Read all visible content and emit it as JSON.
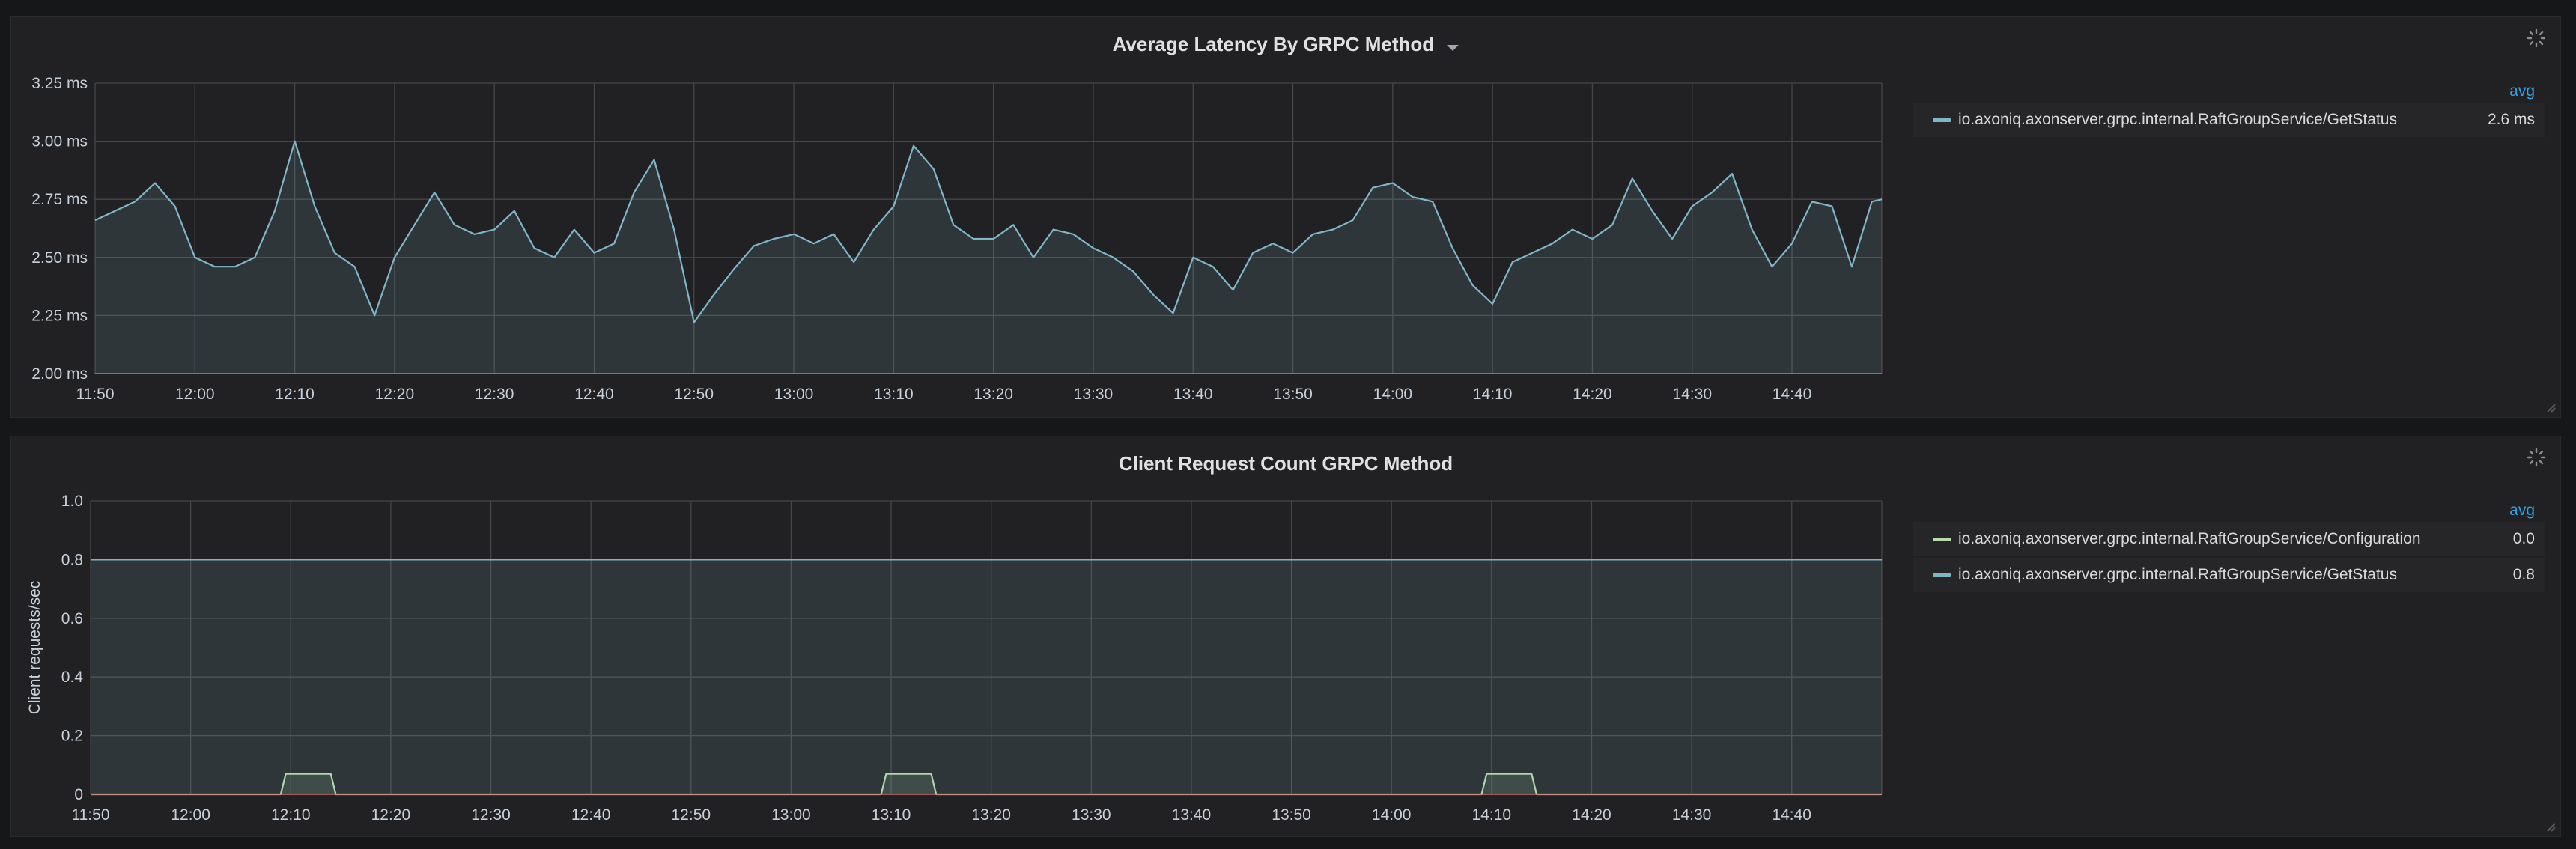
{
  "panels": [
    {
      "title": "Average Latency By GRPC Method",
      "legend_header": "avg",
      "legend": [
        {
          "name": "io.axoniq.axonserver.grpc.internal.RaftGroupService/GetStatus",
          "value": "2.6 ms",
          "color": "#7eb6c8"
        }
      ],
      "y_ticks": [
        "2.00 ms",
        "2.25 ms",
        "2.50 ms",
        "2.75 ms",
        "3.00 ms",
        "3.25 ms"
      ],
      "x_ticks": [
        "11:50",
        "12:00",
        "12:10",
        "12:20",
        "12:30",
        "12:40",
        "12:50",
        "13:00",
        "13:10",
        "13:20",
        "13:30",
        "13:40",
        "13:50",
        "14:00",
        "14:10",
        "14:20",
        "14:30",
        "14:40"
      ]
    },
    {
      "title": "Client Request Count GRPC Method",
      "legend_header": "avg",
      "ylabel": "Client requests/sec",
      "legend": [
        {
          "name": "io.axoniq.axonserver.grpc.internal.RaftGroupService/Configuration",
          "value": "0.0",
          "color": "#b7dbab"
        },
        {
          "name": "io.axoniq.axonserver.grpc.internal.RaftGroupService/GetStatus",
          "value": "0.8",
          "color": "#7eb6c8"
        }
      ],
      "y_ticks": [
        "0",
        "0.2",
        "0.4",
        "0.6",
        "0.8",
        "1.0"
      ],
      "x_ticks": [
        "11:50",
        "12:00",
        "12:10",
        "12:20",
        "12:30",
        "12:40",
        "12:50",
        "13:00",
        "13:10",
        "13:20",
        "13:30",
        "13:40",
        "13:50",
        "14:00",
        "14:10",
        "14:20",
        "14:30",
        "14:40"
      ]
    }
  ],
  "chart_data": [
    {
      "type": "area",
      "title": "Average Latency By GRPC Method",
      "ylim": [
        2.0,
        3.25
      ],
      "yunit": "ms",
      "xlim": [
        "11:50",
        "14:49"
      ],
      "grid": true,
      "legend_position": "right",
      "series": [
        {
          "name": "io.axoniq.axonserver.grpc.internal.RaftGroupService/GetStatus",
          "color": "#7eb6c8",
          "x": [
            "11:50",
            "11:52",
            "11:54",
            "11:56",
            "11:58",
            "12:00",
            "12:02",
            "12:04",
            "12:06",
            "12:08",
            "12:10",
            "12:12",
            "12:14",
            "12:16",
            "12:18",
            "12:20",
            "12:22",
            "12:24",
            "12:26",
            "12:28",
            "12:30",
            "12:32",
            "12:34",
            "12:36",
            "12:38",
            "12:40",
            "12:42",
            "12:44",
            "12:46",
            "12:48",
            "12:50",
            "12:52",
            "12:54",
            "12:56",
            "12:58",
            "13:00",
            "13:02",
            "13:04",
            "13:06",
            "13:08",
            "13:10",
            "13:12",
            "13:14",
            "13:16",
            "13:18",
            "13:20",
            "13:22",
            "13:24",
            "13:26",
            "13:28",
            "13:30",
            "13:32",
            "13:34",
            "13:36",
            "13:38",
            "13:40",
            "13:42",
            "13:44",
            "13:46",
            "13:48",
            "13:50",
            "13:52",
            "13:54",
            "13:56",
            "13:58",
            "14:00",
            "14:02",
            "14:04",
            "14:06",
            "14:08",
            "14:10",
            "14:12",
            "14:14",
            "14:16",
            "14:18",
            "14:20",
            "14:22",
            "14:24",
            "14:26",
            "14:28",
            "14:30",
            "14:32",
            "14:34",
            "14:36",
            "14:38",
            "14:40",
            "14:42",
            "14:44",
            "14:46",
            "14:48",
            "14:49"
          ],
          "values": [
            2.66,
            2.7,
            2.74,
            2.82,
            2.72,
            2.5,
            2.46,
            2.46,
            2.5,
            2.7,
            3.0,
            2.72,
            2.52,
            2.46,
            2.25,
            2.5,
            2.64,
            2.78,
            2.64,
            2.6,
            2.62,
            2.7,
            2.54,
            2.5,
            2.62,
            2.52,
            2.56,
            2.78,
            2.92,
            2.62,
            2.22,
            2.34,
            2.45,
            2.55,
            2.58,
            2.6,
            2.56,
            2.6,
            2.48,
            2.62,
            2.72,
            2.98,
            2.88,
            2.64,
            2.58,
            2.58,
            2.64,
            2.5,
            2.62,
            2.6,
            2.54,
            2.5,
            2.44,
            2.34,
            2.26,
            2.5,
            2.46,
            2.36,
            2.52,
            2.56,
            2.52,
            2.6,
            2.62,
            2.66,
            2.8,
            2.82,
            2.76,
            2.74,
            2.54,
            2.38,
            2.3,
            2.48,
            2.52,
            2.56,
            2.62,
            2.58,
            2.64,
            2.84,
            2.7,
            2.58,
            2.72,
            2.78,
            2.86,
            2.62,
            2.46,
            2.56,
            2.74,
            2.72,
            2.46,
            2.74,
            2.75
          ]
        }
      ]
    },
    {
      "type": "area",
      "title": "Client Request Count GRPC Method",
      "ylabel": "Client requests/sec",
      "ylim": [
        0,
        1.0
      ],
      "xlim": [
        "11:50",
        "14:49"
      ],
      "grid": true,
      "legend_position": "right",
      "series": [
        {
          "name": "io.axoniq.axonserver.grpc.internal.RaftGroupService/Configuration",
          "color": "#b7dbab",
          "x": [
            "11:50",
            "12:09",
            "12:09.5",
            "12:14",
            "12:14.5",
            "13:09",
            "13:09.5",
            "13:14",
            "13:14.5",
            "14:09",
            "14:09.5",
            "14:14",
            "14:14.5",
            "14:49"
          ],
          "values": [
            0,
            0,
            0.07,
            0.07,
            0,
            0,
            0.07,
            0.07,
            0,
            0,
            0.07,
            0.07,
            0,
            0
          ]
        },
        {
          "name": "io.axoniq.axonserver.grpc.internal.RaftGroupService/GetStatus",
          "color": "#7eb6c8",
          "x": [
            "11:50",
            "14:49"
          ],
          "values": [
            0.8,
            0.8
          ]
        }
      ]
    }
  ]
}
